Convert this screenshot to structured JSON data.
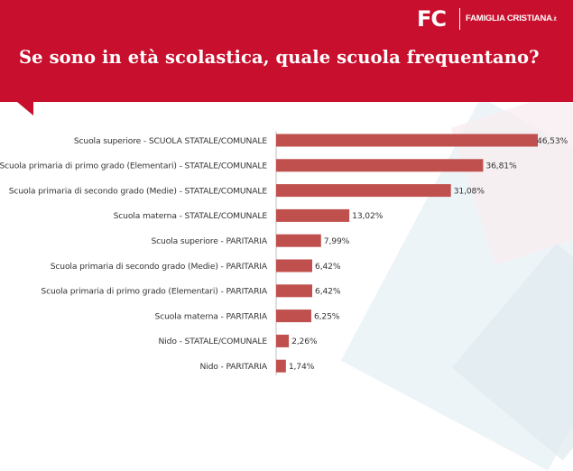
{
  "header": {
    "title": "Se sono in età scolastica, quale scuola frequentano?",
    "logo_mark": "FC",
    "logo_name": "FAMIGLIA CRISTIANA",
    "logo_suffix": ".it"
  },
  "colors": {
    "header": "#c8102e",
    "bar": "#c0504d"
  },
  "chart_data": {
    "type": "bar",
    "orientation": "horizontal",
    "title": "Se sono in età scolastica, quale scuola frequentano?",
    "categories": [
      "Scuola superiore - SCUOLA STATALE/COMUNALE",
      "Scuola primaria di primo grado (Elementari) - STATALE/COMUNALE",
      "Scuola primaria di secondo grado (Medie) - STATALE/COMUNALE",
      "Scuola materna - STATALE/COMUNALE",
      "Scuola superiore - PARITARIA",
      "Scuola primaria di secondo grado (Medie) - PARITARIA",
      "Scuola primaria di primo grado (Elementari) - PARITARIA",
      "Scuola materna - PARITARIA",
      "Nido - STATALE/COMUNALE",
      "Nido - PARITARIA"
    ],
    "values": [
      46.53,
      36.81,
      31.08,
      13.02,
      7.99,
      6.42,
      6.42,
      6.25,
      2.26,
      1.74
    ],
    "value_labels": [
      "46,53%",
      "36,81%",
      "31,08%",
      "13,02%",
      "7,99%",
      "6,42%",
      "6,42%",
      "6,25%",
      "2,26%",
      "1,74%"
    ],
    "xlim": [
      0,
      46.53
    ],
    "xlabel": "",
    "ylabel": "",
    "grid": false
  }
}
